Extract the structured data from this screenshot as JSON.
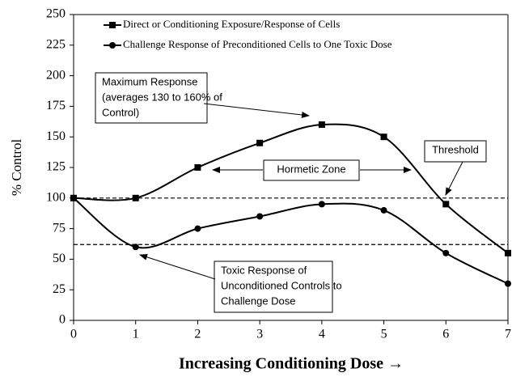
{
  "chart_data": {
    "type": "line",
    "y_label": "% Control",
    "x_label": "Increasing Conditioning Dose →",
    "x": [
      0,
      1,
      2,
      3,
      4,
      5,
      6,
      7
    ],
    "xlim": [
      0,
      7
    ],
    "xticks": [
      0,
      1,
      2,
      3,
      4,
      5,
      6,
      7
    ],
    "ylim": [
      0,
      250
    ],
    "yticks": [
      0,
      25,
      50,
      75,
      100,
      125,
      150,
      175,
      200,
      225,
      250
    ],
    "series": [
      {
        "name": "Direct or Conditioning Exposure/Response of Cells",
        "color": "#000000",
        "marker": "square",
        "values": [
          100,
          100,
          125,
          145,
          160,
          150,
          95,
          55
        ]
      },
      {
        "name": "Challenge Response of Preconditioned Cells to One Toxic Dose",
        "color": "#000000",
        "marker": "circle",
        "values": [
          100,
          60,
          75,
          85,
          95,
          90,
          55,
          30
        ]
      }
    ],
    "reference_lines": [
      100,
      62
    ],
    "legend": "top-left",
    "annotations": [
      {
        "lines": [
          "Maximum Response",
          "(averages 130 to 160% of",
          "Control)"
        ]
      },
      {
        "lines": [
          "Hormetic Zone"
        ]
      },
      {
        "lines": [
          "Threshold"
        ]
      },
      {
        "lines": [
          "Toxic Response of",
          "Unconditioned Controls to",
          "Challenge Dose"
        ]
      }
    ]
  }
}
